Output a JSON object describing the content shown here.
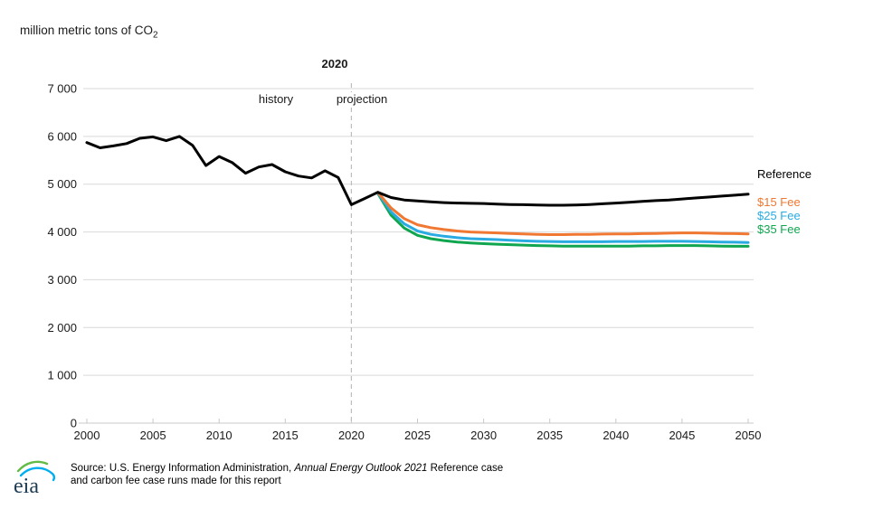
{
  "header": {
    "unit_label": "million metric tons of CO",
    "unit_sub": "2"
  },
  "annotations": {
    "divider_year": "2020",
    "history": "history",
    "projection": "projection"
  },
  "legend": {
    "items": [
      {
        "label": "Reference",
        "color": "#000000"
      },
      {
        "label": "$15 Fee",
        "color": "#F07832"
      },
      {
        "label": "$25 Fee",
        "color": "#29ABE2"
      },
      {
        "label": "$35 Fee",
        "color": "#10A64F"
      }
    ]
  },
  "source": {
    "logo": "eia",
    "line1_prefix": "Source: U.S. Energy Information Administration, ",
    "line1_italic": "Annual Energy Outlook 2021",
    "line1_suffix": " Reference case",
    "line2": "and carbon fee case runs made for this report"
  },
  "chart_data": {
    "type": "line",
    "title": "million metric tons of CO2",
    "xlabel": "",
    "ylabel": "million metric tons of CO2",
    "x_axis": {
      "min": 2000,
      "max": 2050,
      "ticks": [
        2000,
        2005,
        2010,
        2015,
        2020,
        2025,
        2030,
        2035,
        2040,
        2045,
        2050
      ]
    },
    "y_axis": {
      "min": 0,
      "max": 7000,
      "tick_values": [
        0,
        1000,
        2000,
        3000,
        4000,
        5000,
        6000,
        7000
      ],
      "tick_labels": [
        "0",
        "1 000",
        "2 000",
        "3 000",
        "4 000",
        "5 000",
        "6 000",
        "7 000"
      ]
    },
    "grid": true,
    "legend_position": "right",
    "divider": {
      "year": 2020,
      "label": "2020",
      "left_label": "history",
      "right_label": "projection"
    },
    "series": [
      {
        "name": "Reference",
        "color": "#000000",
        "width": 3,
        "start_year": 2000,
        "values": [
          5870,
          5760,
          5800,
          5850,
          5960,
          5990,
          5910,
          6000,
          5810,
          5390,
          5580,
          5450,
          5230,
          5360,
          5410,
          5260,
          5170,
          5130,
          5280,
          5140,
          4570,
          4700,
          4830,
          4720,
          4670,
          4650,
          4630,
          4615,
          4605,
          4600,
          4595,
          4585,
          4575,
          4570,
          4565,
          4560,
          4560,
          4565,
          4575,
          4590,
          4605,
          4620,
          4640,
          4655,
          4670,
          4690,
          4710,
          4730,
          4750,
          4770,
          4790
        ]
      },
      {
        "name": "$15 Fee",
        "color": "#F07832",
        "width": 3,
        "start_year": 2022,
        "values": [
          4830,
          4500,
          4280,
          4150,
          4090,
          4050,
          4020,
          4000,
          3990,
          3980,
          3970,
          3960,
          3950,
          3945,
          3945,
          3950,
          3950,
          3955,
          3960,
          3960,
          3965,
          3970,
          3975,
          3980,
          3980,
          3975,
          3970,
          3965,
          3960
        ]
      },
      {
        "name": "$25 Fee",
        "color": "#29ABE2",
        "width": 3,
        "start_year": 2022,
        "values": [
          4820,
          4420,
          4170,
          4020,
          3950,
          3910,
          3880,
          3860,
          3850,
          3840,
          3825,
          3815,
          3805,
          3800,
          3795,
          3795,
          3795,
          3795,
          3800,
          3800,
          3800,
          3805,
          3805,
          3805,
          3800,
          3795,
          3790,
          3785,
          3780
        ]
      },
      {
        "name": "$35 Fee",
        "color": "#10A64F",
        "width": 3,
        "start_year": 2022,
        "values": [
          4810,
          4350,
          4080,
          3930,
          3860,
          3820,
          3790,
          3770,
          3755,
          3745,
          3735,
          3725,
          3715,
          3710,
          3705,
          3705,
          3705,
          3705,
          3705,
          3705,
          3710,
          3710,
          3715,
          3715,
          3715,
          3710,
          3705,
          3700,
          3700
        ]
      }
    ],
    "styles": {
      "grid_color": "#D9D9D9",
      "axis_color": "#C8C8C8",
      "divider_color": "#BDBDBD",
      "label_color": "#1A1A1A"
    }
  }
}
